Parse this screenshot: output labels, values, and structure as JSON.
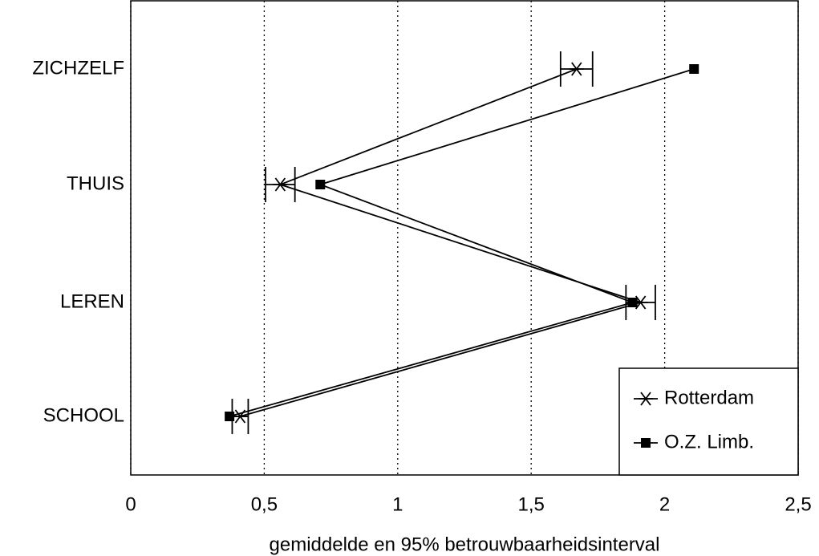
{
  "chart_data": {
    "type": "line",
    "xlabel": "gemiddelde en 95% betrouwbaarheidsinterval",
    "categories": [
      "ZICHZELF",
      "THUIS",
      "LEREN",
      "SCHOOL"
    ],
    "series": [
      {
        "name": "Rotterdam",
        "color": "#000000",
        "marker": "asterisk",
        "values": [
          1.67,
          0.56,
          1.91,
          0.41
        ],
        "errors": [
          0.06,
          0.055,
          0.055,
          0.03
        ]
      },
      {
        "name": "O.Z. Limb.",
        "color": "#000000",
        "marker": "square",
        "values": [
          2.11,
          0.71,
          1.88,
          0.37
        ]
      }
    ],
    "xlim": [
      0,
      2.5
    ],
    "xticks": [
      0,
      {
        "value": 0.5,
        "label": "0,5"
      },
      1,
      {
        "value": 1.5,
        "label": "1,5"
      },
      2,
      {
        "value": 2.5,
        "label": "2,5"
      }
    ],
    "grid": true,
    "legend": "lower right"
  }
}
